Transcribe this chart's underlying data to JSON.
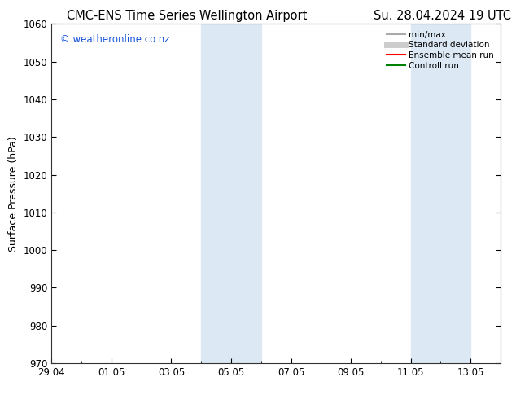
{
  "title_left": "CMC-ENS Time Series Wellington Airport",
  "title_right": "Su. 28.04.2024 19 UTC",
  "ylabel": "Surface Pressure (hPa)",
  "ylim": [
    970,
    1060
  ],
  "yticks": [
    970,
    980,
    990,
    1000,
    1010,
    1020,
    1030,
    1040,
    1050,
    1060
  ],
  "xtick_labels": [
    "29.04",
    "01.05",
    "03.05",
    "05.05",
    "07.05",
    "09.05",
    "11.05",
    "13.05"
  ],
  "xtick_positions": [
    0,
    2,
    4,
    6,
    8,
    10,
    12,
    14
  ],
  "shaded_bands": [
    {
      "start": 5,
      "end": 7
    },
    {
      "start": 12,
      "end": 14
    }
  ],
  "shaded_color": "#dce9f5",
  "watermark_text": "© weatheronline.co.nz",
  "watermark_color": "#1a56db",
  "legend_entries": [
    {
      "label": "min/max",
      "color": "#aaaaaa",
      "lw": 1.5
    },
    {
      "label": "Standard deviation",
      "color": "#cccccc",
      "lw": 5
    },
    {
      "label": "Ensemble mean run",
      "color": "#ff0000",
      "lw": 1.5
    },
    {
      "label": "Controll run",
      "color": "#008000",
      "lw": 1.5
    }
  ],
  "bg_color": "#ffffff",
  "title_fontsize": 10.5,
  "axis_fontsize": 9,
  "tick_fontsize": 8.5
}
